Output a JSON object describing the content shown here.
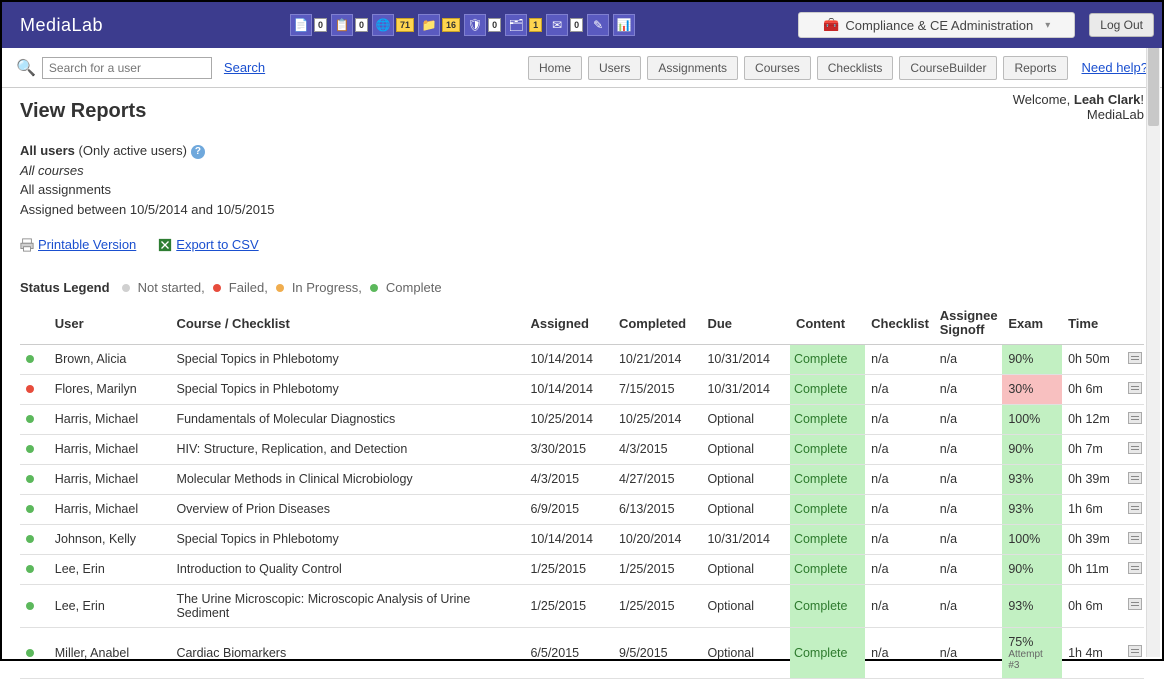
{
  "header": {
    "logo": "MediaLab",
    "toolbar_badges": [
      "0",
      "0",
      "71",
      "16",
      "0",
      "1",
      "0",
      "",
      ""
    ],
    "dropdown_label": "Compliance & CE Administration",
    "logout_label": "Log Out"
  },
  "subbar": {
    "search_placeholder": "Search for a user",
    "search_link": "Search",
    "nav": [
      "Home",
      "Users",
      "Assignments",
      "Courses",
      "Checklists",
      "CourseBuilder",
      "Reports"
    ],
    "need_help": "Need help?"
  },
  "page": {
    "title": "View Reports",
    "welcome_prefix": "Welcome, ",
    "welcome_name": "Leah Clark",
    "welcome_suffix": "!",
    "welcome_org": "MediaLab"
  },
  "filters": {
    "line1_bold": "All users",
    "line1_rest": " (Only active users)",
    "line2": "All courses",
    "line3": "All assignments",
    "line4": "Assigned between 10/5/2014 and 10/5/2015"
  },
  "exports": {
    "printable": "Printable Version",
    "csv": "Export to CSV"
  },
  "legend": {
    "label": "Status Legend",
    "items": [
      {
        "color": "grey",
        "text": "Not started,"
      },
      {
        "color": "red",
        "text": "Failed,"
      },
      {
        "color": "orange",
        "text": "In Progress,"
      },
      {
        "color": "green",
        "text": "Complete"
      }
    ]
  },
  "columns": [
    "",
    "User",
    "Course / Checklist",
    "Assigned",
    "Completed",
    "Due",
    "Content",
    "Checklist",
    "Assignee Signoff",
    "Exam",
    "Time",
    ""
  ],
  "rows": [
    {
      "dot": "green",
      "user": "Brown, Alicia",
      "course": "Special Topics in Phlebotomy",
      "assigned": "10/14/2014",
      "completed": "10/21/2014",
      "due": "10/31/2014",
      "content": "Complete",
      "checklist": "n/a",
      "signoff": "n/a",
      "exam": "90%",
      "exam_status": "pass",
      "time": "0h 50m"
    },
    {
      "dot": "red",
      "user": "Flores, Marilyn",
      "course": "Special Topics in Phlebotomy",
      "assigned": "10/14/2014",
      "completed": "7/15/2015",
      "due": "10/31/2014",
      "content": "Complete",
      "checklist": "n/a",
      "signoff": "n/a",
      "exam": "30%",
      "exam_status": "fail",
      "time": "0h 6m"
    },
    {
      "dot": "green",
      "user": "Harris, Michael",
      "course": "Fundamentals of Molecular Diagnostics",
      "assigned": "10/25/2014",
      "completed": "10/25/2014",
      "due": "Optional",
      "content": "Complete",
      "checklist": "n/a",
      "signoff": "n/a",
      "exam": "100%",
      "exam_status": "pass",
      "time": "0h 12m"
    },
    {
      "dot": "green",
      "user": "Harris, Michael",
      "course": "HIV: Structure, Replication, and Detection",
      "assigned": "3/30/2015",
      "completed": "4/3/2015",
      "due": "Optional",
      "content": "Complete",
      "checklist": "n/a",
      "signoff": "n/a",
      "exam": "90%",
      "exam_status": "pass",
      "time": "0h 7m"
    },
    {
      "dot": "green",
      "user": "Harris, Michael",
      "course": "Molecular Methods in Clinical Microbiology",
      "assigned": "4/3/2015",
      "completed": "4/27/2015",
      "due": "Optional",
      "content": "Complete",
      "checklist": "n/a",
      "signoff": "n/a",
      "exam": "93%",
      "exam_status": "pass",
      "time": "0h 39m"
    },
    {
      "dot": "green",
      "user": "Harris, Michael",
      "course": "Overview of Prion Diseases",
      "assigned": "6/9/2015",
      "completed": "6/13/2015",
      "due": "Optional",
      "content": "Complete",
      "checklist": "n/a",
      "signoff": "n/a",
      "exam": "93%",
      "exam_status": "pass",
      "time": "1h 6m"
    },
    {
      "dot": "green",
      "user": "Johnson, Kelly",
      "course": "Special Topics in Phlebotomy",
      "assigned": "10/14/2014",
      "completed": "10/20/2014",
      "due": "10/31/2014",
      "content": "Complete",
      "checklist": "n/a",
      "signoff": "n/a",
      "exam": "100%",
      "exam_status": "pass",
      "time": "0h 39m"
    },
    {
      "dot": "green",
      "user": "Lee, Erin",
      "course": "Introduction to Quality Control",
      "assigned": "1/25/2015",
      "completed": "1/25/2015",
      "due": "Optional",
      "content": "Complete",
      "checklist": "n/a",
      "signoff": "n/a",
      "exam": "90%",
      "exam_status": "pass",
      "time": "0h 11m"
    },
    {
      "dot": "green",
      "user": "Lee, Erin",
      "course": "The Urine Microscopic: Microscopic Analysis of Urine Sediment",
      "assigned": "1/25/2015",
      "completed": "1/25/2015",
      "due": "Optional",
      "content": "Complete",
      "checklist": "n/a",
      "signoff": "n/a",
      "exam": "93%",
      "exam_status": "pass",
      "time": "0h 6m"
    },
    {
      "dot": "green",
      "user": "Miller, Anabel",
      "course": "Cardiac Biomarkers",
      "assigned": "6/5/2015",
      "completed": "9/5/2015",
      "due": "Optional",
      "content": "Complete",
      "checklist": "n/a",
      "signoff": "n/a",
      "exam": "75%",
      "exam_status": "pass",
      "exam_note": "Attempt #3",
      "time": "1h 4m"
    }
  ]
}
